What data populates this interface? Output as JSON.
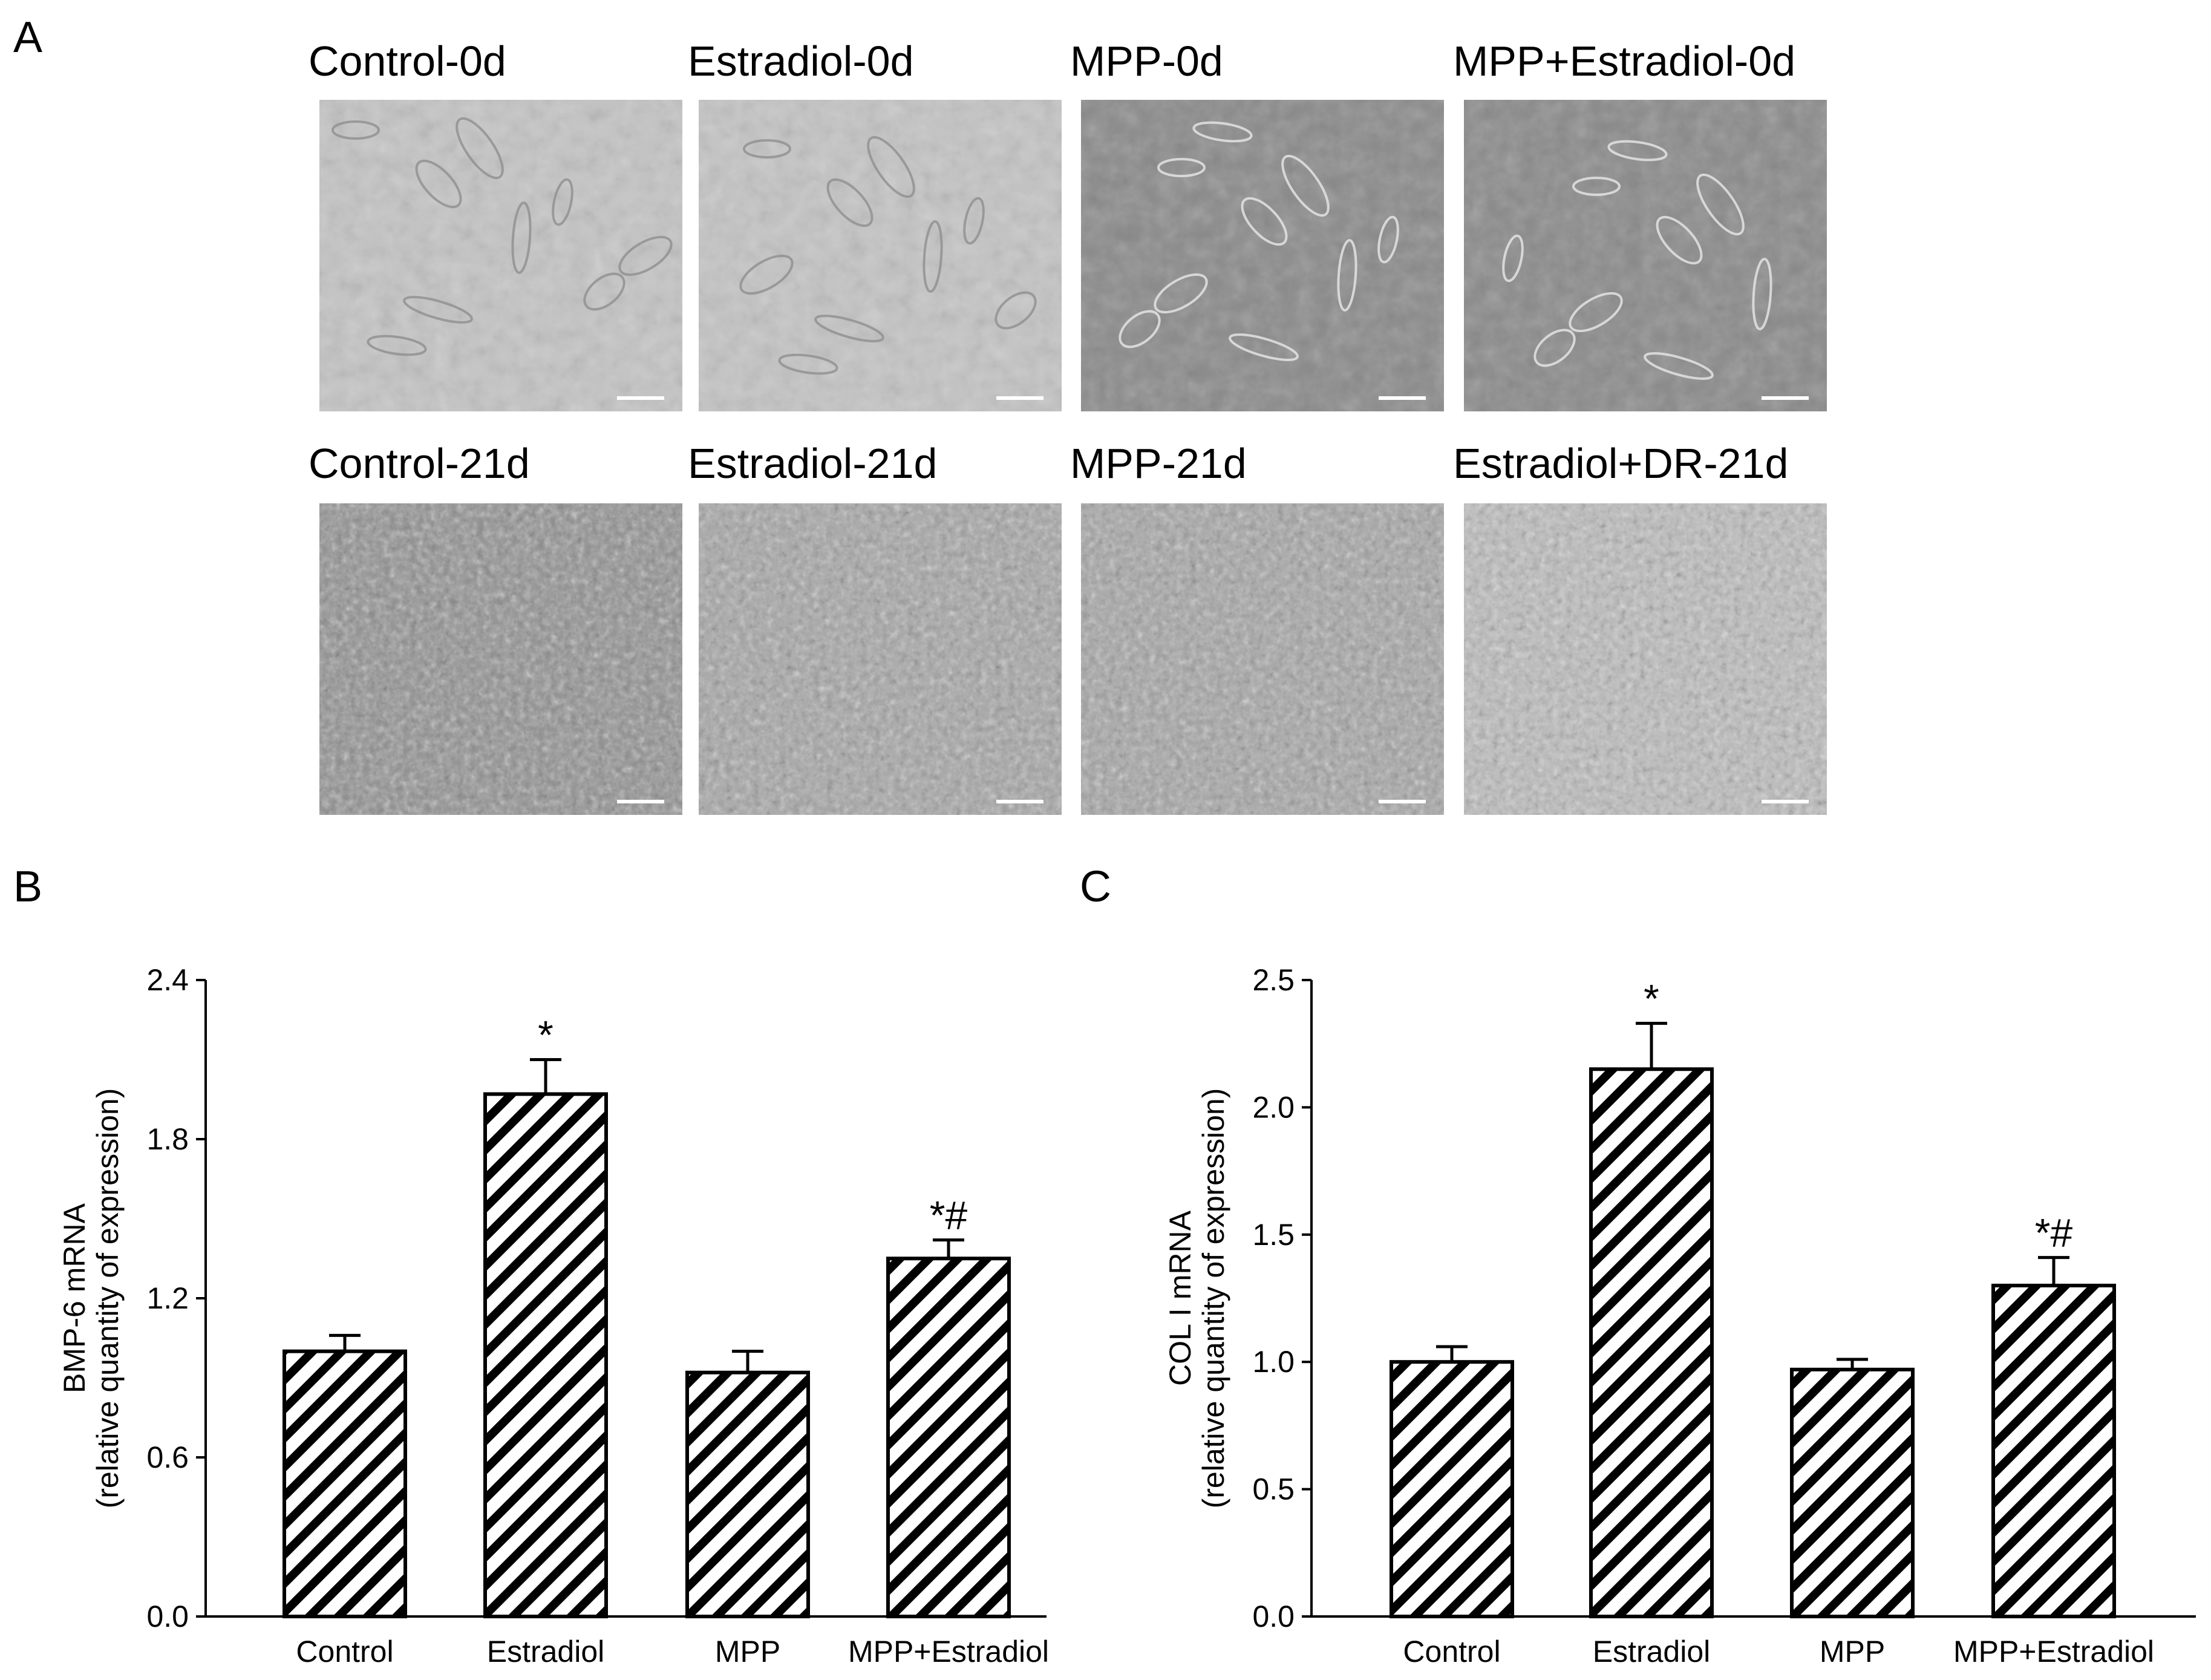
{
  "panel_labels": {
    "a": "A",
    "b": "B",
    "c": "C"
  },
  "micrographs": {
    "row1": [
      {
        "title": "Control-0d",
        "tone": "light"
      },
      {
        "title": "Estradiol-0d",
        "tone": "light"
      },
      {
        "title": "MPP-0d",
        "tone": "dark"
      },
      {
        "title": "MPP+Estradiol-0d",
        "tone": "dark"
      }
    ],
    "row2": [
      {
        "title": "Control-21d",
        "tone": "dense-dark"
      },
      {
        "title": "Estradiol-21d",
        "tone": "dense-mid"
      },
      {
        "title": "MPP-21d",
        "tone": "dense-mid"
      },
      {
        "title": "Estradiol+DR-21d",
        "tone": "dense-light"
      }
    ]
  },
  "chart_data": [
    {
      "panel": "B",
      "type": "bar",
      "categories": [
        "Control",
        "Estradiol",
        "MPP",
        "MPP+Estradiol"
      ],
      "values": [
        1.0,
        1.97,
        0.92,
        1.35
      ],
      "errors": [
        0.06,
        0.13,
        0.08,
        0.07
      ],
      "annotations": [
        "",
        "*",
        "",
        "*#"
      ],
      "ylabel_line1": "BMP-6 mRNA",
      "ylabel_line2": "(relative quantity of expression)",
      "ylim": [
        0,
        2.4
      ],
      "yticks": [
        "0.0",
        "0.6",
        "1.2",
        "1.8",
        "2.4"
      ],
      "bar_fill": "diagonal-hatch",
      "grid": false
    },
    {
      "panel": "C",
      "type": "bar",
      "categories": [
        "Control",
        "Estradiol",
        "MPP",
        "MPP+Estradiol"
      ],
      "values": [
        1.0,
        2.15,
        0.97,
        1.3
      ],
      "errors": [
        0.06,
        0.18,
        0.04,
        0.11
      ],
      "annotations": [
        "",
        "*",
        "",
        "*#"
      ],
      "ylabel_line1": "COL I mRNA",
      "ylabel_line2": "(relative quantity of expression)",
      "ylim": [
        0,
        2.5
      ],
      "yticks": [
        "0.0",
        "0.5",
        "1.0",
        "1.5",
        "2.0",
        "2.5"
      ],
      "bar_fill": "diagonal-hatch",
      "grid": false
    }
  ]
}
